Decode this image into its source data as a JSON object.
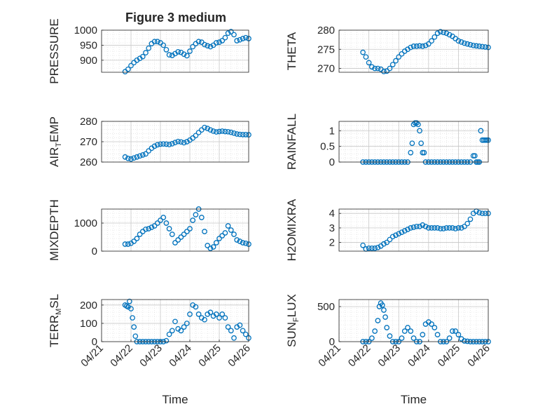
{
  "figure_title": "Figure 3 medium",
  "colors": {
    "marker": "#0072BD",
    "axis": "#262626",
    "grid": "#d9d9d9"
  },
  "chart_data": [
    {
      "type": "scatter",
      "ylabel": "PRESSURE",
      "ylim": [
        860,
        1000
      ],
      "yticks": [
        900,
        950,
        1000
      ],
      "xlim": [
        0,
        5
      ],
      "xticks": [],
      "xlabel": "",
      "x": [
        0.8,
        0.9,
        1.0,
        1.1,
        1.2,
        1.3,
        1.4,
        1.5,
        1.6,
        1.7,
        1.8,
        1.9,
        2.0,
        2.1,
        2.2,
        2.3,
        2.4,
        2.5,
        2.6,
        2.7,
        2.8,
        2.9,
        3.0,
        3.1,
        3.2,
        3.3,
        3.4,
        3.5,
        3.6,
        3.7,
        3.8,
        3.9,
        4.0,
        4.1,
        4.2,
        4.3,
        4.4,
        4.5,
        4.6,
        4.7,
        4.8,
        4.9,
        5.0
      ],
      "y": [
        862,
        870,
        882,
        892,
        900,
        906,
        912,
        925,
        940,
        955,
        962,
        962,
        958,
        950,
        935,
        918,
        916,
        922,
        928,
        926,
        920,
        915,
        930,
        945,
        955,
        962,
        960,
        952,
        948,
        945,
        950,
        958,
        960,
        965,
        975,
        990,
        995,
        985,
        965,
        968,
        972,
        975,
        972
      ]
    },
    {
      "type": "scatter",
      "ylabel": "THETA",
      "ylim": [
        269,
        280
      ],
      "yticks": [
        270,
        275,
        280
      ],
      "xlim": [
        0,
        5
      ],
      "xticks": [],
      "xlabel": "",
      "x": [
        0.8,
        0.9,
        1.0,
        1.1,
        1.2,
        1.3,
        1.4,
        1.5,
        1.6,
        1.7,
        1.8,
        1.9,
        2.0,
        2.1,
        2.2,
        2.3,
        2.4,
        2.5,
        2.6,
        2.7,
        2.8,
        2.9,
        3.0,
        3.1,
        3.2,
        3.3,
        3.4,
        3.5,
        3.6,
        3.7,
        3.8,
        3.9,
        4.0,
        4.1,
        4.2,
        4.3,
        4.4,
        4.5,
        4.6,
        4.7,
        4.8,
        4.9,
        5.0
      ],
      "y": [
        274.2,
        273.0,
        271.5,
        270.4,
        270.0,
        270.0,
        269.8,
        269.2,
        269.3,
        270.0,
        271.0,
        272.0,
        273.0,
        273.8,
        274.5,
        275.0,
        275.5,
        275.8,
        275.8,
        275.9,
        275.8,
        276.0,
        276.4,
        277.2,
        278.2,
        279.2,
        279.6,
        279.4,
        279.2,
        278.8,
        278.4,
        277.8,
        277.2,
        276.9,
        276.6,
        276.4,
        276.2,
        276.0,
        275.9,
        275.8,
        275.7,
        275.6,
        275.5
      ]
    },
    {
      "type": "scatter",
      "ylabel": "AIR_TEMP",
      "ylim": [
        260,
        280
      ],
      "yticks": [
        260,
        270,
        280
      ],
      "xlim": [
        0,
        5
      ],
      "xticks": [],
      "xlabel": "",
      "x": [
        0.8,
        0.9,
        1.0,
        1.1,
        1.2,
        1.3,
        1.4,
        1.5,
        1.6,
        1.7,
        1.8,
        1.9,
        2.0,
        2.1,
        2.2,
        2.3,
        2.4,
        2.5,
        2.6,
        2.7,
        2.8,
        2.9,
        3.0,
        3.1,
        3.2,
        3.3,
        3.4,
        3.5,
        3.6,
        3.7,
        3.8,
        3.9,
        4.0,
        4.1,
        4.2,
        4.3,
        4.4,
        4.5,
        4.6,
        4.7,
        4.8,
        4.9,
        5.0
      ],
      "y": [
        262.5,
        261.8,
        261.5,
        262.0,
        262.5,
        263.0,
        263.5,
        264.0,
        265.5,
        266.8,
        267.8,
        268.5,
        268.8,
        268.9,
        268.8,
        268.6,
        269.0,
        269.6,
        270.1,
        269.9,
        269.5,
        270.0,
        270.8,
        271.8,
        273.0,
        274.5,
        275.8,
        277.0,
        276.5,
        275.8,
        275.2,
        274.8,
        275.0,
        275.2,
        275.0,
        274.9,
        274.6,
        274.2,
        273.8,
        273.6,
        273.5,
        273.5,
        273.4
      ]
    },
    {
      "type": "scatter",
      "ylabel": "RAINFALL",
      "ylim": [
        0,
        1.3
      ],
      "yticks": [
        0,
        0.5,
        1
      ],
      "xlim": [
        0,
        5
      ],
      "xticks": [],
      "xlabel": "",
      "x": [
        0.8,
        0.9,
        1.0,
        1.1,
        1.2,
        1.3,
        1.4,
        1.5,
        1.6,
        1.7,
        1.8,
        1.9,
        2.0,
        2.1,
        2.2,
        2.3,
        2.4,
        2.45,
        2.5,
        2.55,
        2.6,
        2.65,
        2.7,
        2.75,
        2.8,
        2.85,
        2.9,
        3.0,
        3.1,
        3.2,
        3.3,
        3.4,
        3.5,
        3.6,
        3.7,
        3.8,
        3.9,
        4.0,
        4.1,
        4.2,
        4.3,
        4.4,
        4.5,
        4.55,
        4.6,
        4.65,
        4.7,
        4.75,
        4.8,
        4.85,
        4.9,
        4.95,
        5.0
      ],
      "y": [
        0,
        0,
        0,
        0,
        0,
        0,
        0,
        0,
        0,
        0,
        0,
        0,
        0,
        0,
        0,
        0,
        0.3,
        0.6,
        1.2,
        1.25,
        1.25,
        1.2,
        1.0,
        0.6,
        0.3,
        0.3,
        0,
        0,
        0,
        0,
        0,
        0,
        0,
        0,
        0,
        0,
        0,
        0,
        0,
        0,
        0,
        0,
        0.2,
        0.2,
        0,
        0,
        0,
        1.0,
        0.7,
        0.7,
        0.7,
        0.7,
        0.7
      ]
    },
    {
      "type": "scatter",
      "ylabel": "MIXDEPTH",
      "ylim": [
        0,
        1500
      ],
      "yticks": [
        0,
        1000
      ],
      "xlim": [
        0,
        5
      ],
      "xticks": [],
      "xlabel": "",
      "x": [
        0.8,
        0.9,
        1.0,
        1.1,
        1.2,
        1.3,
        1.4,
        1.5,
        1.6,
        1.7,
        1.8,
        1.9,
        2.0,
        2.1,
        2.2,
        2.3,
        2.4,
        2.5,
        2.6,
        2.7,
        2.8,
        2.9,
        3.0,
        3.1,
        3.2,
        3.3,
        3.4,
        3.5,
        3.6,
        3.7,
        3.8,
        3.9,
        4.0,
        4.1,
        4.2,
        4.3,
        4.4,
        4.5,
        4.6,
        4.7,
        4.8,
        4.9,
        5.0
      ],
      "y": [
        250,
        250,
        280,
        350,
        450,
        600,
        700,
        780,
        800,
        850,
        900,
        1000,
        1100,
        1200,
        1000,
        800,
        600,
        300,
        400,
        500,
        600,
        700,
        800,
        1100,
        1300,
        1500,
        1200,
        700,
        200,
        100,
        150,
        300,
        450,
        550,
        650,
        900,
        750,
        600,
        400,
        350,
        300,
        280,
        250
      ]
    },
    {
      "type": "scatter",
      "ylabel": "H2OMIXRA",
      "ylim": [
        1.4,
        4.3
      ],
      "yticks": [
        2,
        3,
        4
      ],
      "xlim": [
        0,
        5
      ],
      "xticks": [],
      "xlabel": "",
      "x": [
        0.8,
        0.9,
        1.0,
        1.1,
        1.2,
        1.3,
        1.4,
        1.5,
        1.6,
        1.7,
        1.8,
        1.9,
        2.0,
        2.1,
        2.2,
        2.3,
        2.4,
        2.5,
        2.6,
        2.7,
        2.8,
        2.9,
        3.0,
        3.1,
        3.2,
        3.3,
        3.4,
        3.5,
        3.6,
        3.7,
        3.8,
        3.9,
        4.0,
        4.1,
        4.2,
        4.3,
        4.4,
        4.5,
        4.6,
        4.7,
        4.8,
        4.9,
        5.0
      ],
      "y": [
        1.8,
        1.55,
        1.6,
        1.6,
        1.6,
        1.65,
        1.75,
        1.9,
        2.0,
        2.2,
        2.4,
        2.5,
        2.6,
        2.7,
        2.8,
        2.9,
        3.0,
        3.05,
        3.1,
        3.1,
        3.2,
        3.1,
        3.0,
        3.0,
        3.0,
        3.0,
        2.95,
        2.95,
        3.0,
        3.0,
        3.0,
        2.95,
        3.0,
        3.0,
        3.1,
        3.3,
        3.6,
        4.0,
        4.15,
        4.05,
        4.0,
        4.0,
        4.0
      ]
    },
    {
      "type": "scatter",
      "ylabel": "TERR_MSL",
      "ylim": [
        0,
        230
      ],
      "yticks": [
        0,
        100,
        200
      ],
      "xlim": [
        0,
        5
      ],
      "xticks": [
        "04/21",
        "04/22",
        "04/23",
        "04/24",
        "04/25",
        "04/26"
      ],
      "xlabel": "Time",
      "x": [
        0.8,
        0.85,
        0.9,
        0.95,
        1.0,
        1.05,
        1.1,
        1.15,
        1.2,
        1.3,
        1.4,
        1.5,
        1.6,
        1.7,
        1.8,
        1.9,
        2.0,
        2.1,
        2.2,
        2.3,
        2.4,
        2.5,
        2.6,
        2.7,
        2.8,
        2.9,
        3.0,
        3.1,
        3.2,
        3.3,
        3.4,
        3.5,
        3.6,
        3.7,
        3.8,
        3.9,
        4.0,
        4.1,
        4.2,
        4.3,
        4.4,
        4.5,
        4.6,
        4.7,
        4.8,
        4.9,
        5.0
      ],
      "y": [
        200,
        195,
        190,
        220,
        180,
        130,
        80,
        30,
        0,
        0,
        0,
        0,
        0,
        0,
        0,
        0,
        0,
        0,
        5,
        40,
        60,
        110,
        70,
        60,
        80,
        100,
        150,
        200,
        190,
        150,
        130,
        120,
        150,
        160,
        140,
        150,
        130,
        150,
        130,
        80,
        60,
        20,
        80,
        90,
        60,
        40,
        20
      ]
    },
    {
      "type": "scatter",
      "ylabel": "SUN_FLUX",
      "ylim": [
        0,
        600
      ],
      "yticks": [
        0,
        500
      ],
      "xlim": [
        0,
        5
      ],
      "xticks": [
        "04/21",
        "04/22",
        "04/23",
        "04/24",
        "04/25",
        "04/26"
      ],
      "xlabel": "Time",
      "x": [
        0.8,
        0.9,
        1.0,
        1.1,
        1.2,
        1.3,
        1.35,
        1.4,
        1.45,
        1.5,
        1.55,
        1.6,
        1.7,
        1.8,
        1.9,
        2.0,
        2.1,
        2.2,
        2.3,
        2.4,
        2.5,
        2.6,
        2.7,
        2.8,
        2.9,
        3.0,
        3.1,
        3.2,
        3.3,
        3.4,
        3.5,
        3.6,
        3.7,
        3.8,
        3.9,
        4.0,
        4.1,
        4.2,
        4.3,
        4.4,
        4.5,
        4.6,
        4.7,
        4.8,
        4.9,
        5.0
      ],
      "y": [
        0,
        0,
        0,
        50,
        150,
        300,
        500,
        550,
        520,
        450,
        350,
        200,
        80,
        0,
        0,
        0,
        50,
        150,
        200,
        150,
        50,
        0,
        0,
        100,
        250,
        280,
        250,
        200,
        100,
        0,
        0,
        0,
        50,
        150,
        150,
        100,
        40,
        10,
        5,
        0,
        0,
        0,
        0,
        0,
        0,
        0
      ]
    }
  ]
}
